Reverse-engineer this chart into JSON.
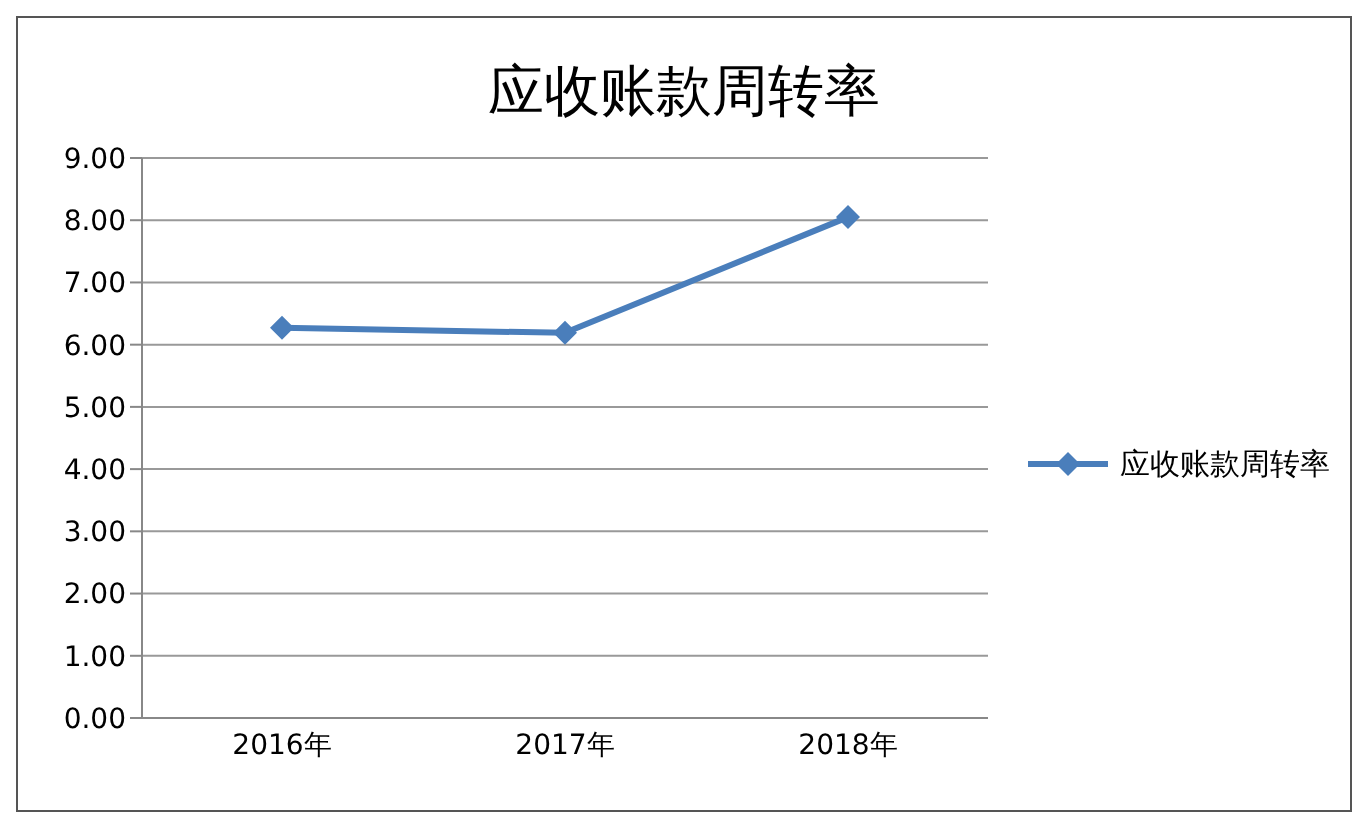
{
  "chart_data": {
    "type": "line",
    "title": "应收账款周转率",
    "categories": [
      "2016年",
      "2017年",
      "2018年"
    ],
    "series": [
      {
        "name": "应收账款周转率",
        "color": "#4a7ebb",
        "values": [
          6.27,
          6.19,
          8.05
        ]
      }
    ],
    "ylim": [
      0,
      9
    ],
    "yticks": [
      {
        "value": 0,
        "label": "0.00"
      },
      {
        "value": 1,
        "label": "1.00"
      },
      {
        "value": 2,
        "label": "2.00"
      },
      {
        "value": 3,
        "label": "3.00"
      },
      {
        "value": 4,
        "label": "4.00"
      },
      {
        "value": 5,
        "label": "5.00"
      },
      {
        "value": 6,
        "label": "6.00"
      },
      {
        "value": 7,
        "label": "7.00"
      },
      {
        "value": 8,
        "label": "8.00"
      },
      {
        "value": 9,
        "label": "9.00"
      }
    ],
    "grid": "y",
    "legend": "right",
    "marker": "diamond",
    "line_style": "solid"
  }
}
